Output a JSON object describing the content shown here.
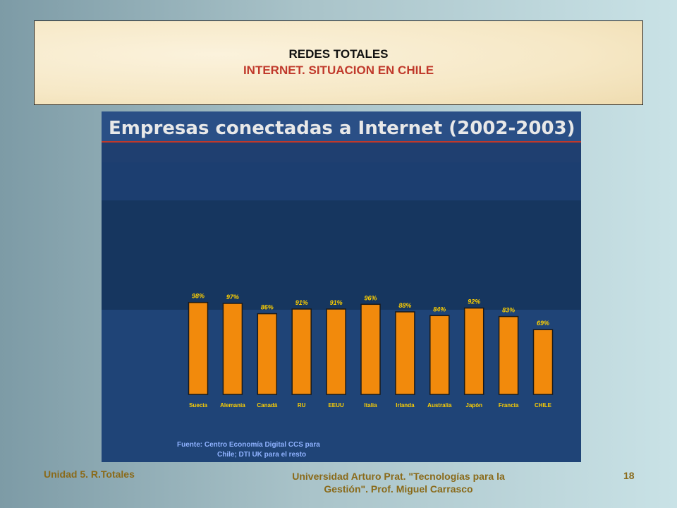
{
  "header": {
    "title": "REDES TOTALES",
    "subtitle": "INTERNET. SITUACION EN CHILE"
  },
  "footer": {
    "left": "Unidad 5. R.Totales",
    "center_line1": "Universidad Arturo Prat. \"Tecnologías para la",
    "center_line2": "Gestión\".  Prof. Miguel Carrasco",
    "page": "18"
  },
  "colors": {
    "bar_fill": "#f28a0c",
    "bar_stroke": "#1a1a1a",
    "heading_text": "#e8e8e8",
    "label_text": "#ffd000",
    "source_text": "#8fb2ff",
    "rule": "#c0392b"
  },
  "chart_data": {
    "type": "bar",
    "title": "Empresas conectadas a Internet (2002-2003)",
    "categories": [
      "Suecia",
      "Alemania",
      "Canadá",
      "RU",
      "EEUU",
      "Italia",
      "Irlanda",
      "Australia",
      "Japón",
      "Francia",
      "CHILE"
    ],
    "values": [
      98,
      97,
      86,
      91,
      91,
      96,
      88,
      84,
      92,
      83,
      69
    ],
    "value_labels": [
      "98%",
      "97%",
      "86%",
      "91%",
      "91%",
      "96%",
      "88%",
      "84%",
      "92%",
      "83%",
      "69%"
    ],
    "ylim": [
      0,
      100
    ],
    "grid": false,
    "source_lines": [
      "Fuente: Centro Economía Digital CCS para",
      "Chile;  DTI UK para el resto"
    ]
  }
}
